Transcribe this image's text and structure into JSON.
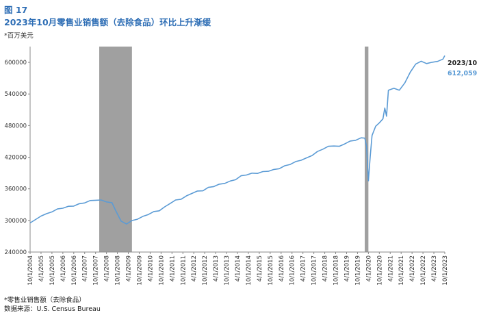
{
  "figure_label": "图 17",
  "title": "2023年10月零售业销售额（去除食品）环比上升渐缓",
  "unit": "*百万美元",
  "footnote": "*零售业销售额（去除食品）",
  "source": "数据来源：U.S. Census Bureau",
  "colors": {
    "line": "#5B9BD5",
    "recession": "#A0A0A0",
    "title": "#2E6EB5"
  },
  "chart_data": {
    "type": "line",
    "title": "2023年10月零售业销售额（去除食品）环比上升渐缓",
    "ylabel": "*百万美元",
    "ylim": [
      240000,
      630000
    ],
    "xlim": [
      "2004-10",
      "2023-10"
    ],
    "y_ticks": [
      "600000",
      "540000",
      "480000",
      "420000",
      "360000",
      "300000",
      "240000"
    ],
    "x_ticks": [
      "10/1/2004",
      "4/1/2005",
      "10/1/2005",
      "4/1/2006",
      "10/1/2006",
      "4/1/2007",
      "10/1/2007",
      "4/1/2008",
      "10/1/2008",
      "4/1/2009",
      "10/1/2009",
      "4/1/2010",
      "10/1/2010",
      "4/1/2011",
      "10/1/2011",
      "4/1/2012",
      "10/1/2012",
      "4/1/2013",
      "10/1/2013",
      "4/1/2014",
      "10/1/2014",
      "4/1/2015",
      "10/1/2015",
      "4/1/2016",
      "10/1/2016",
      "4/1/2017",
      "10/1/2017",
      "4/1/2018",
      "10/1/2018",
      "4/1/2019",
      "10/1/2019",
      "4/1/2020",
      "10/1/2020",
      "4/1/2021",
      "10/1/2021",
      "4/1/2022",
      "10/1/2022",
      "4/1/2023",
      "10/1/2023"
    ],
    "recessions": [
      {
        "start": "2007-12",
        "end": "2009-06"
      },
      {
        "start": "2020-02",
        "end": "2020-04"
      }
    ],
    "grid": false,
    "legend": "none",
    "annotation": {
      "date": "2023/10",
      "value": "612,059"
    },
    "series": [
      {
        "x": [
          "2004-10",
          "2005-01",
          "2005-04",
          "2005-07",
          "2005-10",
          "2006-01",
          "2006-04",
          "2006-07",
          "2006-10",
          "2007-01",
          "2007-04",
          "2007-07",
          "2007-10",
          "2008-01",
          "2008-04",
          "2008-07",
          "2008-09",
          "2008-12",
          "2009-03",
          "2009-06",
          "2009-09",
          "2009-12",
          "2010-03",
          "2010-06",
          "2010-09",
          "2010-12",
          "2011-03",
          "2011-06",
          "2011-09",
          "2011-12",
          "2012-03",
          "2012-06",
          "2012-09",
          "2012-12",
          "2013-03",
          "2013-06",
          "2013-09",
          "2013-12",
          "2014-03",
          "2014-06",
          "2014-09",
          "2014-12",
          "2015-03",
          "2015-06",
          "2015-09",
          "2015-12",
          "2016-03",
          "2016-06",
          "2016-09",
          "2016-12",
          "2017-03",
          "2017-06",
          "2017-09",
          "2017-12",
          "2018-03",
          "2018-06",
          "2018-09",
          "2018-12",
          "2019-03",
          "2019-06",
          "2019-09",
          "2019-12",
          "2020-02",
          "2020-03",
          "2020-04",
          "2020-05",
          "2020-06",
          "2020-08",
          "2020-10",
          "2020-12",
          "2021-01",
          "2021-02",
          "2021-03",
          "2021-06",
          "2021-09",
          "2021-12",
          "2022-03",
          "2022-06",
          "2022-09",
          "2022-12",
          "2023-03",
          "2023-06",
          "2023-09",
          "2023-10"
        ],
        "values": [
          296000,
          301000,
          309000,
          312000,
          317000,
          321000,
          324000,
          326000,
          328000,
          331000,
          334000,
          337000,
          339000,
          338000,
          336000,
          333000,
          320000,
          298000,
          294000,
          299000,
          303000,
          307000,
          312000,
          316000,
          319000,
          325000,
          333000,
          338000,
          341000,
          346000,
          352000,
          355000,
          357000,
          362000,
          365000,
          368000,
          371000,
          374000,
          378000,
          384000,
          387000,
          389000,
          390000,
          392000,
          394000,
          396000,
          399000,
          403000,
          407000,
          411000,
          415000,
          418000,
          424000,
          430000,
          436000,
          440000,
          442000,
          440000,
          446000,
          450000,
          453000,
          456000,
          457000,
          440000,
          376000,
          420000,
          462000,
          478000,
          486000,
          492000,
          514000,
          497000,
          548000,
          550000,
          548000,
          560000,
          582000,
          596000,
          603000,
          597000,
          601000,
          601000,
          607000,
          612059
        ]
      }
    ]
  }
}
